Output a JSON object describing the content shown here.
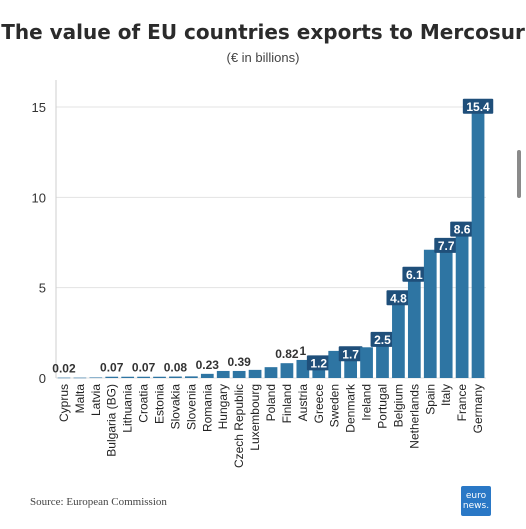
{
  "chart_data": {
    "type": "bar",
    "title": "The value of EU countries exports to Mercosur",
    "subtitle": "(€ in billions)",
    "categories": [
      "Cyprus",
      "Malta",
      "Latvia",
      "Bulgaria (BG)",
      "Lithuania",
      "Croatia",
      "Estonia",
      "Slovakia",
      "Slovenia",
      "Romania",
      "Hungary",
      "Czech Republic",
      "Luxembourg",
      "Poland",
      "Finland",
      "Austria",
      "Greece",
      "Sweden",
      "Denmark",
      "Ireland",
      "Portugal",
      "Belgium",
      "Netherlands",
      "Spain",
      "Italy",
      "France",
      "Germany"
    ],
    "values": [
      0.02,
      0.02,
      0.03,
      0.07,
      0.07,
      0.07,
      0.07,
      0.08,
      0.09,
      0.23,
      0.39,
      0.39,
      0.45,
      0.6,
      0.82,
      1,
      1.2,
      1.5,
      1.7,
      1.7,
      2.5,
      4.8,
      6.1,
      7.1,
      7.7,
      8.6,
      15.4
    ],
    "data_labels": [
      "0.02",
      "",
      "",
      "0.07",
      "",
      "0.07",
      "",
      "0.08",
      "",
      "0.23",
      "",
      "0.39",
      "",
      "",
      "0.82",
      "1",
      "1.2",
      "",
      "1.7",
      "",
      "2.5",
      "4.8",
      "6.1",
      "",
      "7.7",
      "8.6",
      "15.4"
    ],
    "ylim": [
      0,
      15.5
    ],
    "yticks": [
      0,
      5,
      10,
      15
    ],
    "grid": true,
    "bar_color": "#2e75a3",
    "label_box_color": "#1f4f7a"
  },
  "source": "Source: European Commission",
  "logo": {
    "line1": "euro",
    "line2": "news."
  }
}
